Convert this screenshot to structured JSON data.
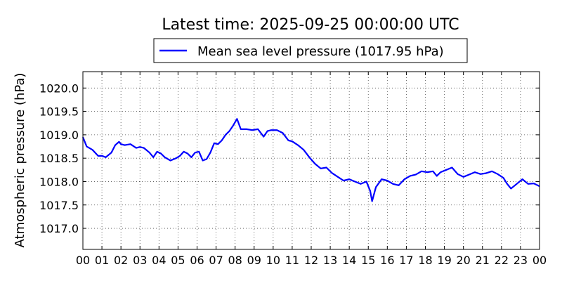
{
  "chart_data": {
    "type": "line",
    "title": "Latest time: 2025-09-25 00:00:00 UTC",
    "ylabel": "Atmospheric pressure (hPa)",
    "xlabel": "",
    "xlim": [
      0,
      24
    ],
    "ylim": [
      1016.55,
      1020.35
    ],
    "x_tick_labels": [
      "00",
      "01",
      "02",
      "03",
      "04",
      "05",
      "06",
      "07",
      "08",
      "09",
      "10",
      "11",
      "12",
      "13",
      "14",
      "15",
      "16",
      "17",
      "18",
      "19",
      "20",
      "21",
      "22",
      "23",
      "00"
    ],
    "y_ticks": [
      1017.0,
      1017.5,
      1018.0,
      1018.5,
      1019.0,
      1019.5,
      1020.0
    ],
    "y_tick_labels": [
      "1017.0",
      "1017.5",
      "1018.0",
      "1018.5",
      "1019.0",
      "1019.5",
      "1020.0"
    ],
    "grid": true,
    "legend_position": "top-center",
    "series": [
      {
        "name": "Mean sea level pressure (1017.95 hPa)",
        "color": "#0000ff",
        "x": [
          0.0,
          0.2,
          0.5,
          0.8,
          1.0,
          1.2,
          1.5,
          1.7,
          1.9,
          2.0,
          2.2,
          2.5,
          2.8,
          3.0,
          3.2,
          3.5,
          3.7,
          3.9,
          4.1,
          4.3,
          4.6,
          4.9,
          5.1,
          5.3,
          5.5,
          5.7,
          5.9,
          6.1,
          6.3,
          6.5,
          6.7,
          6.9,
          7.1,
          7.3,
          7.5,
          7.7,
          7.9,
          8.1,
          8.3,
          8.6,
          8.9,
          9.2,
          9.5,
          9.7,
          9.9,
          10.2,
          10.5,
          10.8,
          11.0,
          11.3,
          11.6,
          11.9,
          12.2,
          12.5,
          12.8,
          13.1,
          13.4,
          13.7,
          14.0,
          14.3,
          14.6,
          14.9,
          15.1,
          15.2,
          15.4,
          15.7,
          16.0,
          16.3,
          16.6,
          16.9,
          17.2,
          17.5,
          17.8,
          18.1,
          18.4,
          18.6,
          18.8,
          19.1,
          19.4,
          19.7,
          20.0,
          20.3,
          20.6,
          20.9,
          21.2,
          21.5,
          21.8,
          22.1,
          22.3,
          22.5,
          22.8,
          23.1,
          23.4,
          23.7,
          24.0
        ],
        "y": [
          1018.95,
          1018.75,
          1018.68,
          1018.55,
          1018.55,
          1018.52,
          1018.62,
          1018.78,
          1018.85,
          1018.8,
          1018.78,
          1018.8,
          1018.72,
          1018.74,
          1018.72,
          1018.62,
          1018.52,
          1018.64,
          1018.6,
          1018.52,
          1018.45,
          1018.5,
          1018.55,
          1018.64,
          1018.6,
          1018.52,
          1018.62,
          1018.64,
          1018.45,
          1018.48,
          1018.62,
          1018.82,
          1018.8,
          1018.88,
          1019.0,
          1019.08,
          1019.2,
          1019.34,
          1019.12,
          1019.12,
          1019.1,
          1019.12,
          1018.96,
          1019.08,
          1019.1,
          1019.1,
          1019.04,
          1018.88,
          1018.86,
          1018.78,
          1018.68,
          1018.52,
          1018.38,
          1018.28,
          1018.3,
          1018.18,
          1018.1,
          1018.02,
          1018.05,
          1018.0,
          1017.95,
          1018.0,
          1017.8,
          1017.58,
          1017.88,
          1018.05,
          1018.02,
          1017.95,
          1017.92,
          1018.05,
          1018.12,
          1018.15,
          1018.22,
          1018.2,
          1018.22,
          1018.12,
          1018.2,
          1018.25,
          1018.3,
          1018.16,
          1018.1,
          1018.15,
          1018.2,
          1018.16,
          1018.18,
          1018.22,
          1018.16,
          1018.08,
          1017.95,
          1017.85,
          1017.95,
          1018.05,
          1017.95,
          1017.96,
          1017.9
        ]
      }
    ]
  }
}
